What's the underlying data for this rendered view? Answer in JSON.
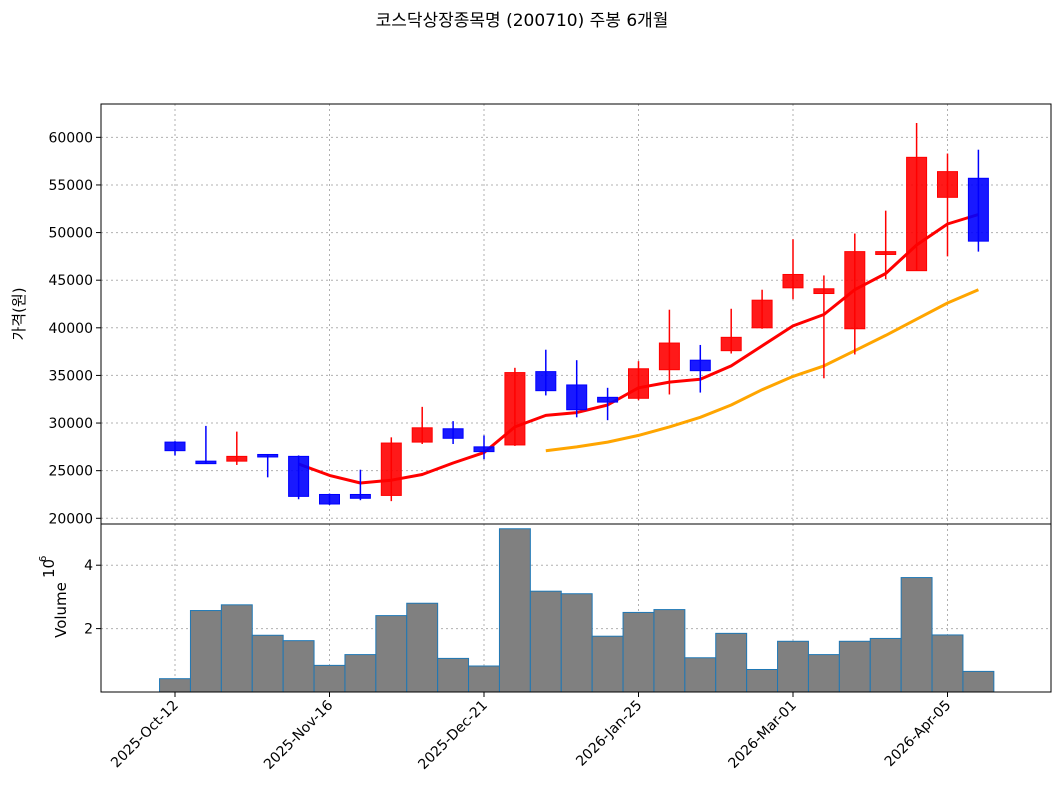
{
  "chart_data": {
    "type": "candlestick",
    "title": "코스닥상장종목명 (200710) 주봉 6개월",
    "ylabel_price": "가격(원)",
    "ylabel_volume": "Volume",
    "volume_exponent_base": "10",
    "volume_exponent": "6",
    "x_tick_labels": [
      "2025-Oct-12",
      "2025-Nov-16",
      "2025-Dec-21",
      "2026-Jan-25",
      "2026-Mar-01",
      "2026-Apr-05"
    ],
    "x_tick_indices": [
      0,
      5,
      10,
      15,
      20,
      25
    ],
    "price_ylim": [
      19400,
      63500
    ],
    "price_ticks": [
      20000,
      25000,
      30000,
      35000,
      40000,
      45000,
      50000,
      55000,
      60000
    ],
    "volume_ylim": [
      0,
      5.3
    ],
    "volume_ticks": [
      2,
      4
    ],
    "grid": true,
    "colors": {
      "up": "#ff0000",
      "down": "#0000ff",
      "ma_short": "#ff0000",
      "ma_long": "#ffa500",
      "volume_bar": "#808080",
      "volume_edge": "#1f77b4",
      "grid": "#b0b0b0"
    },
    "candles": [
      {
        "open": 28000,
        "high": 28100,
        "low": 26600,
        "close": 27100
      },
      {
        "open": 26000,
        "high": 29700,
        "low": 25700,
        "close": 25800
      },
      {
        "open": 26000,
        "high": 29100,
        "low": 25600,
        "close": 26500
      },
      {
        "open": 26700,
        "high": 26700,
        "low": 24300,
        "close": 26500
      },
      {
        "open": 26500,
        "high": 26600,
        "low": 22000,
        "close": 22300
      },
      {
        "open": 22500,
        "high": 22600,
        "low": 21400,
        "close": 21500
      },
      {
        "open": 22500,
        "high": 25100,
        "low": 21900,
        "close": 22100
      },
      {
        "open": 22400,
        "high": 28500,
        "low": 21800,
        "close": 27900
      },
      {
        "open": 28000,
        "high": 31700,
        "low": 27800,
        "close": 29500
      },
      {
        "open": 29400,
        "high": 30200,
        "low": 27800,
        "close": 28400
      },
      {
        "open": 27500,
        "high": 28700,
        "low": 26200,
        "close": 27000
      },
      {
        "open": 27700,
        "high": 35800,
        "low": 27600,
        "close": 35300
      },
      {
        "open": 35400,
        "high": 37700,
        "low": 32900,
        "close": 33400
      },
      {
        "open": 34000,
        "high": 36600,
        "low": 30600,
        "close": 31400
      },
      {
        "open": 32700,
        "high": 33700,
        "low": 30300,
        "close": 32200
      },
      {
        "open": 32600,
        "high": 36500,
        "low": 32400,
        "close": 35700
      },
      {
        "open": 35600,
        "high": 41900,
        "low": 33000,
        "close": 38400
      },
      {
        "open": 36600,
        "high": 38200,
        "low": 33200,
        "close": 35500
      },
      {
        "open": 37600,
        "high": 42000,
        "low": 37300,
        "close": 39000
      },
      {
        "open": 40000,
        "high": 44000,
        "low": 39900,
        "close": 42900
      },
      {
        "open": 44200,
        "high": 49300,
        "low": 43000,
        "close": 45600
      },
      {
        "open": 43600,
        "high": 45500,
        "low": 34700,
        "close": 44100
      },
      {
        "open": 39900,
        "high": 49900,
        "low": 37200,
        "close": 48000
      },
      {
        "open": 47700,
        "high": 52300,
        "low": 45100,
        "close": 48000
      },
      {
        "open": 46000,
        "high": 61500,
        "low": 46000,
        "close": 57900
      },
      {
        "open": 53700,
        "high": 58300,
        "low": 47500,
        "close": 56400
      },
      {
        "open": 55700,
        "high": 58700,
        "low": 48000,
        "close": 49100
      }
    ],
    "ma_short": [
      null,
      null,
      null,
      null,
      25700,
      24500,
      23700,
      24000,
      24600,
      25800,
      26900,
      29600,
      30800,
      31100,
      31900,
      33700,
      34300,
      34600,
      36000,
      38100,
      40200,
      41400,
      44000,
      45700,
      48700,
      50900,
      51900
    ],
    "ma_long": [
      null,
      null,
      null,
      null,
      null,
      null,
      null,
      null,
      null,
      null,
      null,
      null,
      27100,
      27500,
      28000,
      28700,
      29600,
      30600,
      31900,
      33500,
      34900,
      36000,
      37600,
      39200,
      40900,
      42600,
      44000
    ],
    "volume": [
      0.42,
      2.57,
      2.75,
      1.79,
      1.62,
      0.84,
      1.18,
      2.41,
      2.8,
      1.06,
      0.82,
      5.15,
      3.18,
      3.1,
      1.76,
      2.51,
      2.6,
      1.08,
      1.85,
      0.71,
      1.6,
      1.18,
      1.6,
      1.69,
      3.61,
      1.8,
      0.65
    ]
  }
}
